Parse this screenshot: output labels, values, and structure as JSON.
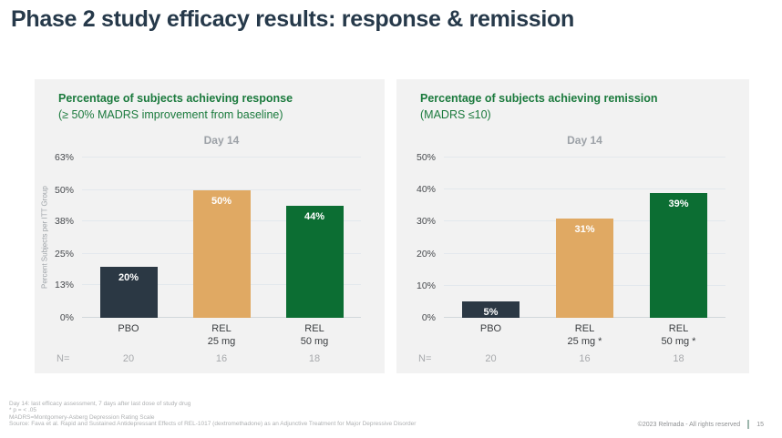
{
  "slide": {
    "title": "Phase 2 study efficacy results: response & remission",
    "footnotes": [
      "Day 14: last efficacy assessment, 7 days after last dose of study drug",
      "* p = < .05",
      "MADRS=Montgomery-Asberg Depression Rating Scale",
      "Source:  Fava et al. Rapid and Sustained Antidepressant Effects of REL-1017 (dextromethadone) as an Adjunctive Treatment for Major Depressive Disorder"
    ],
    "copyright": "©2023 Relmada - All rights reserved",
    "page_number": "15"
  },
  "colors": {
    "title_navy": "#26394A",
    "accent_green": "#1B7A3D",
    "bar_pbo": "#2B3844",
    "bar_rel25": "#E0A963",
    "bar_rel50": "#0C6E33",
    "panel_bg": "#F2F2F2"
  },
  "chart_data": [
    {
      "type": "bar",
      "title": "Percentage of subjects achieving response",
      "subtitle": "(≥ 50% MADRS improvement from baseline)",
      "group_header": "Day 14",
      "ylabel": "Percent Subjects per ITT Group",
      "ylim": [
        0,
        63
      ],
      "yticks": [
        0,
        13,
        25,
        38,
        50,
        63
      ],
      "ytick_labels": [
        "0%",
        "13%",
        "25%",
        "38%",
        "50%",
        "63%"
      ],
      "grid": true,
      "legend": "none",
      "categories": [
        [
          "PBO"
        ],
        [
          "REL",
          "25 mg"
        ],
        [
          "REL",
          "50 mg"
        ]
      ],
      "values": [
        20,
        50,
        44
      ],
      "value_labels": [
        "20%",
        "50%",
        "44%"
      ],
      "bar_colors": [
        "#2B3844",
        "#E0A963",
        "#0C6E33"
      ],
      "n_label": "N=",
      "n_values": [
        "20",
        "16",
        "18"
      ]
    },
    {
      "type": "bar",
      "title": "Percentage of subjects achieving remission",
      "subtitle": "(MADRS ≤10)",
      "group_header": "Day 14",
      "ylabel": "",
      "ylim": [
        0,
        50
      ],
      "yticks": [
        0,
        10,
        20,
        30,
        40,
        50
      ],
      "ytick_labels": [
        "0%",
        "10%",
        "20%",
        "30%",
        "40%",
        "50%"
      ],
      "grid": true,
      "legend": "none",
      "categories": [
        [
          "PBO"
        ],
        [
          "REL",
          "25 mg *"
        ],
        [
          "REL",
          "50 mg *"
        ]
      ],
      "values": [
        5,
        31,
        39
      ],
      "value_labels": [
        "5%",
        "31%",
        "39%"
      ],
      "bar_colors": [
        "#2B3844",
        "#E0A963",
        "#0C6E33"
      ],
      "n_label": "N=",
      "n_values": [
        "20",
        "16",
        "18"
      ]
    }
  ]
}
